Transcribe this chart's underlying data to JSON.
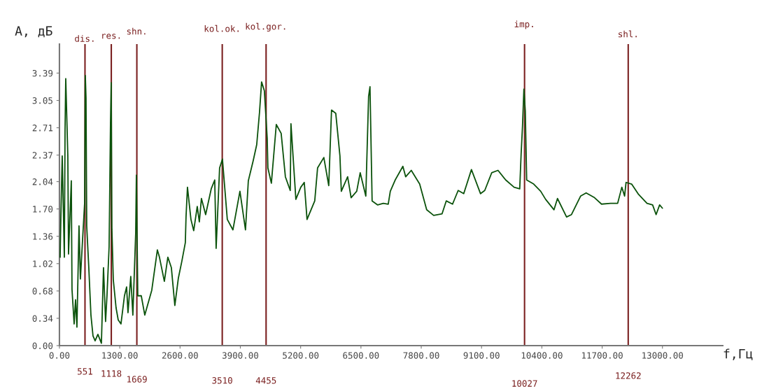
{
  "chart_data": {
    "type": "line",
    "xlabel": "f,Гц",
    "ylabel": "А, дБ",
    "xlim": [
      0,
      14300
    ],
    "ylim": [
      0,
      3.75
    ],
    "xticks": [
      {
        "value": 0,
        "label": "0.00"
      },
      {
        "value": 1300,
        "label": "1300.00"
      },
      {
        "value": 2600,
        "label": "2600.00"
      },
      {
        "value": 3900,
        "label": "3900.00"
      },
      {
        "value": 5200,
        "label": "5200.00"
      },
      {
        "value": 6500,
        "label": "6500.00"
      },
      {
        "value": 7800,
        "label": "7800.00"
      },
      {
        "value": 9100,
        "label": "9100.00"
      },
      {
        "value": 10400,
        "label": "10400.00"
      },
      {
        "value": 11700,
        "label": "11700.00"
      },
      {
        "value": 13000,
        "label": "13000.00"
      }
    ],
    "yticks": [
      {
        "value": 0,
        "label": "0.00"
      },
      {
        "value": 0.34,
        "label": "0.34"
      },
      {
        "value": 0.68,
        "label": "0.68"
      },
      {
        "value": 1.02,
        "label": "1.02"
      },
      {
        "value": 1.36,
        "label": "1.36"
      },
      {
        "value": 1.7,
        "label": "1.70"
      },
      {
        "value": 2.04,
        "label": "2.04"
      },
      {
        "value": 2.37,
        "label": "2.37"
      },
      {
        "value": 2.71,
        "label": "2.71"
      },
      {
        "value": 3.05,
        "label": "3.05"
      },
      {
        "value": 3.39,
        "label": "3.39"
      }
    ],
    "grid": false,
    "legend": false,
    "marker": "none",
    "line_style": "solid",
    "series": [
      {
        "color": "#0b520b",
        "x": [
          15,
          30,
          60,
          106,
          121,
          136,
          181,
          196,
          256,
          271,
          317,
          347,
          377,
          422,
          452,
          498,
          543,
          558,
          573,
          588,
          633,
          679,
          724,
          769,
          829,
          905,
          935,
          950,
          995,
          1025,
          1071,
          1101,
          1116,
          1131,
          1161,
          1221,
          1267,
          1327,
          1402,
          1448,
          1478,
          1538,
          1583,
          1644,
          1659,
          1689,
          1764,
          1840,
          1991,
          2111,
          2156,
          2262,
          2337,
          2413,
          2488,
          2564,
          2639,
          2714,
          2729,
          2760,
          2835,
          2895,
          2971,
          3016,
          3061,
          3152,
          3272,
          3348,
          3378,
          3453,
          3514,
          3619,
          3740,
          3891,
          4011,
          4072,
          4177,
          4253,
          4313,
          4358,
          4418,
          4479,
          4494,
          4569,
          4675,
          4780,
          4871,
          4976,
          4991,
          5097,
          5203,
          5278,
          5338,
          5504,
          5565,
          5700,
          5806,
          5866,
          5957,
          6047,
          6077,
          6213,
          6288,
          6409,
          6484,
          6605,
          6665,
          6695,
          6741,
          6861,
          6982,
          7088,
          7133,
          7238,
          7404,
          7465,
          7585,
          7766,
          7917,
          8068,
          8249,
          8339,
          8475,
          8596,
          8716,
          8882,
          9078,
          9169,
          9319,
          9455,
          9621,
          9802,
          9923,
          9953,
          9983,
          10013,
          10043,
          10073,
          10224,
          10375,
          10481,
          10662,
          10737,
          10933,
          11039,
          11235,
          11355,
          11536,
          11687,
          11883,
          12034,
          12124,
          12184,
          12215,
          12335,
          12486,
          12667,
          12788,
          12863,
          12939,
          12999
        ],
        "values": [
          1.1,
          1.57,
          2.36,
          1.1,
          2.67,
          3.32,
          2.36,
          1.14,
          2.05,
          0.7,
          0.27,
          0.57,
          0.23,
          1.49,
          0.83,
          1.31,
          1.77,
          3.36,
          3.08,
          1.49,
          0.97,
          0.38,
          0.12,
          0.06,
          0.14,
          0.03,
          0.66,
          0.97,
          0.3,
          0.62,
          1.23,
          2.77,
          3.27,
          1.45,
          0.82,
          0.47,
          0.32,
          0.27,
          0.62,
          0.73,
          0.41,
          0.86,
          0.38,
          1.4,
          2.12,
          0.62,
          0.62,
          0.38,
          0.69,
          1.19,
          1.1,
          0.8,
          1.1,
          0.97,
          0.5,
          0.84,
          1.05,
          1.28,
          1.6,
          1.97,
          1.57,
          1.43,
          1.73,
          1.54,
          1.83,
          1.63,
          1.95,
          2.06,
          1.21,
          2.21,
          2.32,
          1.57,
          1.44,
          1.92,
          1.44,
          2.05,
          2.3,
          2.5,
          2.9,
          3.28,
          3.17,
          2.58,
          2.21,
          2.02,
          2.75,
          2.64,
          2.1,
          1.93,
          2.76,
          1.82,
          1.97,
          2.03,
          1.57,
          1.8,
          2.21,
          2.34,
          1.99,
          2.93,
          2.89,
          2.36,
          1.92,
          2.1,
          1.84,
          1.92,
          2.15,
          1.86,
          3.1,
          3.22,
          1.8,
          1.75,
          1.77,
          1.76,
          1.92,
          2.06,
          2.23,
          2.1,
          2.18,
          2.01,
          1.69,
          1.62,
          1.64,
          1.8,
          1.76,
          1.93,
          1.89,
          2.19,
          1.89,
          1.93,
          2.15,
          2.18,
          2.06,
          1.97,
          1.95,
          2.38,
          2.73,
          3.19,
          2.92,
          2.06,
          2.01,
          1.92,
          1.82,
          1.69,
          1.83,
          1.6,
          1.63,
          1.86,
          1.9,
          1.84,
          1.76,
          1.77,
          1.77,
          1.97,
          1.86,
          2.03,
          2.01,
          1.88,
          1.77,
          1.75,
          1.63,
          1.75,
          1.71
        ]
      }
    ],
    "annotations": [
      "551",
      "1118",
      "1669",
      "3510",
      "4455",
      "10027",
      "12262"
    ],
    "ref_lines": [
      {
        "axis": "x",
        "value": 551,
        "label": "dis.",
        "color": "#7a1f1f",
        "line_style": "solid"
      },
      {
        "axis": "x",
        "value": 1118,
        "label": "res.",
        "color": "#7a1f1f",
        "line_style": "solid"
      },
      {
        "axis": "x",
        "value": 1669,
        "label": "shn.",
        "color": "#7a1f1f",
        "line_style": "solid"
      },
      {
        "axis": "x",
        "value": 3510,
        "label": "kol.ok.",
        "color": "#7a1f1f",
        "line_style": "solid"
      },
      {
        "axis": "x",
        "value": 4455,
        "label": "kol.gor.",
        "color": "#7a1f1f",
        "line_style": "solid"
      },
      {
        "axis": "x",
        "value": 10027,
        "label": "imp.",
        "color": "#7a1f1f",
        "line_style": "solid"
      },
      {
        "axis": "x",
        "value": 12262,
        "label": "shl.",
        "color": "#7a1f1f",
        "line_style": "solid"
      }
    ]
  }
}
